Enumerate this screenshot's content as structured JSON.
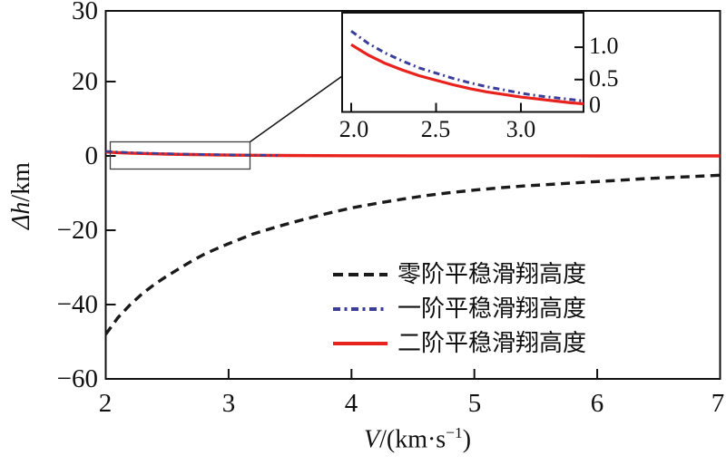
{
  "labels": {
    "ylabel_italic": "Δh",
    "ylabel_rest": "/km",
    "xlabel_italic": "V",
    "xlabel_mid": "/(km·s",
    "xlabel_sup": "−1",
    "xlabel_close": ")"
  },
  "axes": {
    "x_ticks": [
      "2",
      "3",
      "4",
      "5",
      "6",
      "7"
    ],
    "y_ticks": [
      "30",
      "20",
      "0",
      "−20",
      "−40",
      "−60"
    ]
  },
  "inset_axes": {
    "x_ticks": [
      "2.0",
      "2.5",
      "3.0"
    ],
    "y_ticks": [
      "1.0",
      "0.5",
      "0"
    ]
  },
  "legend": [
    {
      "label": "零阶平稳滑翔高度",
      "color": "#1a1a1a",
      "style": "dashed"
    },
    {
      "label": "一阶平稳滑翔高度",
      "color": "#3b3e99",
      "style": "dashdot"
    },
    {
      "label": "二阶平稳滑翔高度",
      "color": "#e8221c",
      "style": "solid"
    }
  ],
  "chart_data": {
    "type": "line",
    "title": "",
    "xlabel": "V/(km·s⁻¹)",
    "ylabel": "Δh/km",
    "xlim": [
      2,
      7
    ],
    "ylim": [
      -60,
      30
    ],
    "xticks": [
      2,
      3,
      4,
      5,
      6,
      7
    ],
    "yticks": [
      30,
      20,
      0,
      -20,
      -40,
      -60
    ],
    "grid": false,
    "legend_position": "inside lower right",
    "series": [
      {
        "name": "零阶平稳滑翔高度",
        "color": "#1a1a1a",
        "line_style": "dashed",
        "points": [
          [
            2.0,
            -48
          ],
          [
            2.1,
            -43.5
          ],
          [
            2.2,
            -40
          ],
          [
            2.3,
            -37
          ],
          [
            2.4,
            -34.5
          ],
          [
            2.5,
            -32.3
          ],
          [
            2.6,
            -30.3
          ],
          [
            2.7,
            -28.3
          ],
          [
            2.8,
            -26.5
          ],
          [
            2.9,
            -25
          ],
          [
            3.0,
            -23.6
          ],
          [
            3.2,
            -21
          ],
          [
            3.4,
            -19
          ],
          [
            3.6,
            -17.2
          ],
          [
            3.8,
            -15.5
          ],
          [
            4.0,
            -14
          ],
          [
            4.2,
            -12.8
          ],
          [
            4.4,
            -11.7
          ],
          [
            4.6,
            -10.7
          ],
          [
            4.8,
            -9.9
          ],
          [
            5.0,
            -9.2
          ],
          [
            5.2,
            -8.6
          ],
          [
            5.4,
            -8.1
          ],
          [
            5.6,
            -7.7
          ],
          [
            5.8,
            -7.3
          ],
          [
            6.0,
            -6.9
          ],
          [
            6.2,
            -6.5
          ],
          [
            6.4,
            -6.1
          ],
          [
            6.6,
            -5.8
          ],
          [
            6.8,
            -5.5
          ],
          [
            7.0,
            -5.2
          ]
        ]
      },
      {
        "name": "一阶平稳滑翔高度",
        "color": "#3b3e99",
        "line_style": "dashdot",
        "points": [
          [
            2.0,
            1.25
          ],
          [
            2.1,
            1.06
          ],
          [
            2.2,
            0.91
          ],
          [
            2.3,
            0.79
          ],
          [
            2.4,
            0.68
          ],
          [
            2.5,
            0.6
          ],
          [
            2.6,
            0.52
          ],
          [
            2.7,
            0.45
          ],
          [
            2.8,
            0.39
          ],
          [
            2.9,
            0.34
          ],
          [
            3.0,
            0.29
          ],
          [
            3.1,
            0.25
          ],
          [
            3.2,
            0.22
          ],
          [
            3.3,
            0.19
          ],
          [
            3.4,
            0.16
          ]
        ]
      },
      {
        "name": "二阶平稳滑翔高度",
        "color": "#e8221c",
        "line_style": "solid",
        "points": [
          [
            2.0,
            1.04
          ],
          [
            2.1,
            0.88
          ],
          [
            2.2,
            0.75
          ],
          [
            2.3,
            0.65
          ],
          [
            2.4,
            0.56
          ],
          [
            2.5,
            0.49
          ],
          [
            2.6,
            0.42
          ],
          [
            2.7,
            0.36
          ],
          [
            2.8,
            0.31
          ],
          [
            2.9,
            0.27
          ],
          [
            3.0,
            0.23
          ],
          [
            3.1,
            0.2
          ],
          [
            3.2,
            0.17
          ],
          [
            3.3,
            0.14
          ],
          [
            3.4,
            0.12
          ],
          [
            3.7,
            0.08
          ],
          [
            4.0,
            0.05
          ],
          [
            4.5,
            0.03
          ],
          [
            5.0,
            0.02
          ],
          [
            6.0,
            0.01
          ],
          [
            7.0,
            0.0
          ]
        ]
      }
    ],
    "inset": {
      "description": "zoom of first- and second-order curves near zero",
      "xlim": [
        2.0,
        3.37
      ],
      "ylim": [
        0,
        1.5
      ],
      "xticks": [
        2.0,
        2.5,
        3.0
      ],
      "yticks": [
        1.0,
        0.5,
        0
      ],
      "series_shown": [
        "一阶平稳滑翔高度",
        "二阶平稳滑翔高度"
      ],
      "zoom_source_region_x": [
        2.04,
        3.17
      ],
      "zoom_source_region_y": [
        -3.5,
        3.8
      ]
    }
  }
}
